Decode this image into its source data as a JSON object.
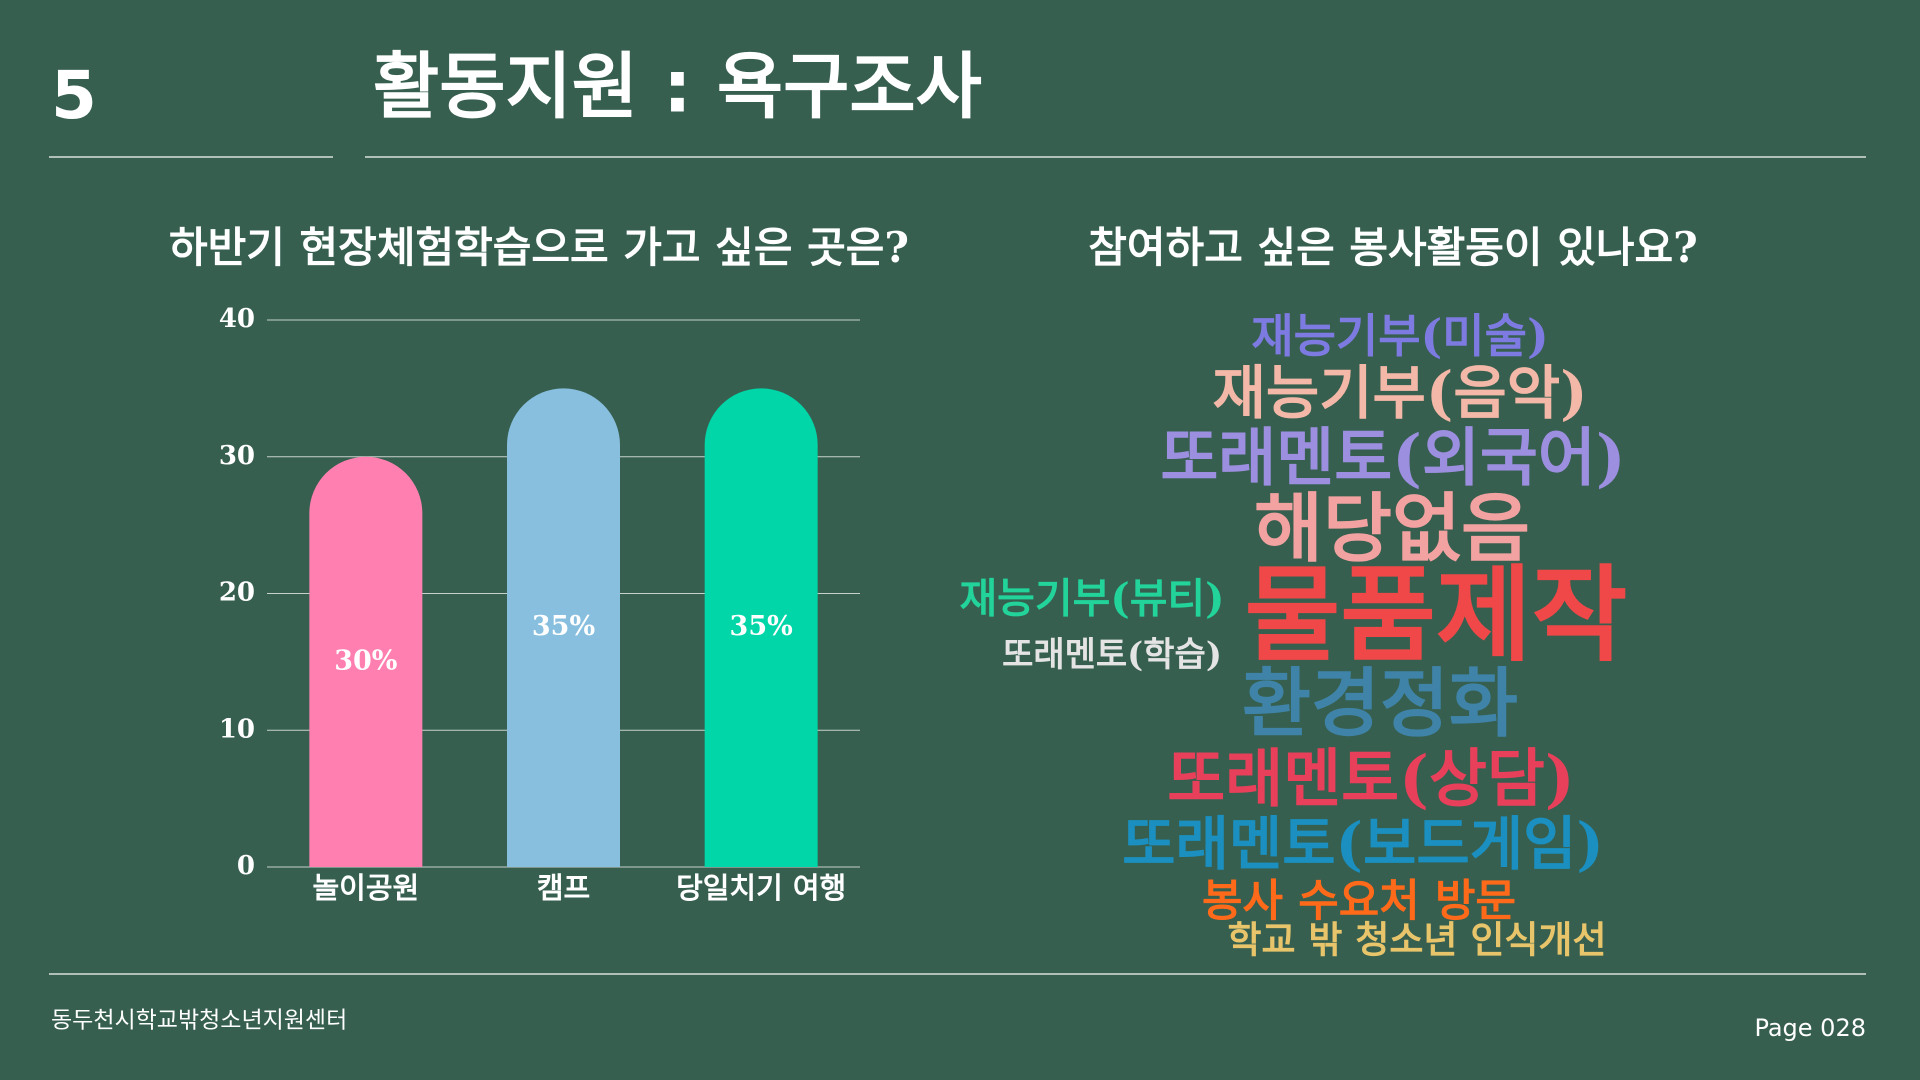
{
  "header": {
    "number": "5",
    "title": "활동지원 : 욕구조사"
  },
  "chart_data": {
    "type": "bar",
    "title": "하반기 현장체험학습으로 가고 싶은 곳은?",
    "categories": [
      "놀이공원",
      "캠프",
      "당일치기 여행"
    ],
    "values": [
      30,
      35,
      35
    ],
    "value_labels": [
      "30%",
      "35%",
      "35%"
    ],
    "colors": [
      "#ff80b0",
      "#88bfdf",
      "#00d6a8"
    ],
    "ylim": [
      0,
      40
    ],
    "yticks": [
      0,
      10,
      20,
      30,
      40
    ],
    "grid": true
  },
  "word_cloud": {
    "title": "참여하고 싶은 봉사활동이 있나요?",
    "words": [
      {
        "text": "재능기부(미술)",
        "color": "#7d7ae2"
      },
      {
        "text": "재능기부(음악)",
        "color": "#f4b8a8"
      },
      {
        "text": "또래멘토(외국어)",
        "color": "#9c8fe0"
      },
      {
        "text": "해당없음",
        "color": "#f2a2a0"
      },
      {
        "text": "재능기부(뷰티)",
        "color": "#22d39a"
      },
      {
        "text": "물품제작",
        "color": "#f04848"
      },
      {
        "text": "또래멘토(학습)",
        "color": "#e4e4e4"
      },
      {
        "text": "환경정화",
        "color": "#3f84a8"
      },
      {
        "text": "또래멘토(상담)",
        "color": "#e8405a"
      },
      {
        "text": "또래멘토(보드게임)",
        "color": "#1a8fc0"
      },
      {
        "text": "봉사 수요처 방문",
        "color": "#ff6a1a"
      },
      {
        "text": "학교 밖 청소년 인식개선",
        "color": "#e8c46a"
      }
    ]
  },
  "footer": {
    "organization": "동두천시학교밖청소년지원센터",
    "page": "Page 028"
  }
}
